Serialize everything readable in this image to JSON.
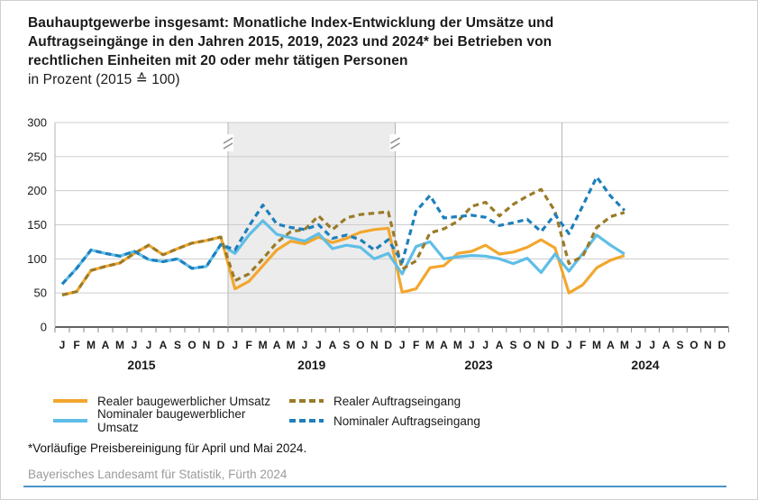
{
  "header": {
    "title_line1": "Bauhauptgewerbe insgesamt: Monatliche Index-Entwicklung der Umsätze und",
    "title_line2": "Auftragseingänge in den Jahren 2015, 2019, 2023 und 2024* bei Betrieben von",
    "title_line3": "rechtlichen Einheiten mit 20 oder mehr tätigen Personen",
    "title_line4": "in Prozent (2015 ≙ 100)"
  },
  "footnote": "*Vorläufige Preisbereinigung für April und Mai 2024.",
  "source": "Bayerisches Landesamt für Statistik, Fürth 2024",
  "colors": {
    "accent_bar": "#4C96C8",
    "grid": "#cccccc",
    "axis": "#4d4d4d",
    "divider": "#b5b5b5",
    "panel_shade": "#ececec",
    "tick": "#8a8a8a"
  },
  "chart_data": {
    "type": "line",
    "title": "Bauhauptgewerbe insgesamt: Monatliche Index-Entwicklung der Umsätze und Auftragseingänge in den Jahren 2015, 2019, 2023 und 2024 bei Betrieben von rechtlichen Einheiten mit 20 oder mehr tätigen Personen, in Prozent (2015 ≙ 100)",
    "ylim": [
      0,
      300
    ],
    "yticks": [
      0,
      50,
      100,
      150,
      200,
      250,
      300
    ],
    "grid": true,
    "legend_position": "bottom",
    "month_labels": [
      "J",
      "F",
      "M",
      "A",
      "M",
      "J",
      "J",
      "A",
      "S",
      "O",
      "N",
      "D"
    ],
    "panels": [
      "2015",
      "2019",
      "2023",
      "2024"
    ],
    "highlighted_panel": "2019",
    "axis_break_after_panels": [
      "2015",
      "2019"
    ],
    "series": [
      {
        "name": "Realer baugewerblicher Umsatz",
        "style": "solid",
        "color": "#F2A72E",
        "values": {
          "2015": [
            47,
            52,
            83,
            89,
            94,
            108,
            120,
            106,
            115,
            123,
            127,
            132
          ],
          "2019": [
            56,
            67,
            90,
            113,
            126,
            122,
            132,
            124,
            130,
            139,
            143,
            145
          ],
          "2023": [
            51,
            56,
            87,
            90,
            108,
            111,
            120,
            107,
            110,
            117,
            128,
            116
          ],
          "2024": [
            50,
            62,
            87,
            98,
            105
          ]
        }
      },
      {
        "name": "Realer Auftragseingang",
        "style": "solid",
        "color": "#5FBEE6",
        "values": {
          "2015": [
            63,
            86,
            113,
            108,
            104,
            111,
            99,
            96,
            100,
            86,
            89,
            121
          ],
          "2019": [
            108,
            135,
            156,
            136,
            131,
            126,
            137,
            115,
            120,
            117,
            100,
            108
          ],
          "2023": [
            78,
            118,
            125,
            100,
            103,
            105,
            104,
            100,
            93,
            101,
            80,
            107
          ],
          "2024": [
            82,
            108,
            135,
            120,
            107
          ]
        }
      },
      {
        "name": "Nominaler baugewerblicher Umsatz",
        "style": "dashed",
        "color": "#9A7B28",
        "values": {
          "2015": [
            47,
            52,
            83,
            89,
            94,
            108,
            120,
            106,
            115,
            123,
            127,
            132
          ],
          "2019": [
            68,
            78,
            100,
            124,
            140,
            143,
            163,
            143,
            160,
            165,
            167,
            169
          ],
          "2023": [
            85,
            97,
            138,
            144,
            155,
            177,
            183,
            163,
            180,
            192,
            202,
            170
          ],
          "2024": [
            93,
            104,
            146,
            162,
            168
          ]
        }
      },
      {
        "name": "Nominaler Auftragseingang",
        "style": "dashed",
        "color": "#1E7FBC",
        "values": {
          "2015": [
            63,
            86,
            113,
            108,
            104,
            111,
            99,
            96,
            100,
            86,
            89,
            121
          ],
          "2019": [
            113,
            148,
            179,
            151,
            146,
            143,
            150,
            130,
            135,
            128,
            113,
            128
          ],
          "2023": [
            95,
            170,
            193,
            160,
            162,
            164,
            161,
            149,
            153,
            158,
            140,
            165
          ],
          "2024": [
            137,
            178,
            220,
            192,
            171
          ]
        }
      }
    ]
  }
}
